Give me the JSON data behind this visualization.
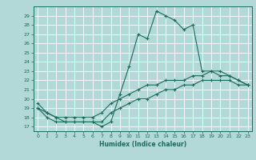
{
  "xlabel": "Humidex (Indice chaleur)",
  "background_color": "#b2d8d8",
  "grid_color": "#ffffff",
  "line_color": "#1a6b5a",
  "xlim": [
    -0.5,
    23.5
  ],
  "ylim": [
    16.5,
    30.0
  ],
  "yticks": [
    17,
    18,
    19,
    20,
    21,
    22,
    23,
    24,
    25,
    26,
    27,
    28,
    29
  ],
  "xticks": [
    0,
    1,
    2,
    3,
    4,
    5,
    6,
    7,
    8,
    9,
    10,
    11,
    12,
    13,
    14,
    15,
    16,
    17,
    18,
    19,
    20,
    21,
    22,
    23
  ],
  "series1": [
    19.5,
    18.5,
    18.0,
    17.5,
    17.5,
    17.5,
    17.5,
    17.0,
    17.5,
    20.5,
    23.5,
    27.0,
    26.5,
    29.5,
    29.0,
    28.5,
    27.5,
    28.0,
    23.0,
    23.0,
    22.5,
    22.5,
    22.0,
    21.5
  ],
  "series2": [
    19.0,
    18.5,
    18.0,
    18.0,
    18.0,
    18.0,
    18.0,
    18.5,
    19.5,
    20.0,
    20.5,
    21.0,
    21.5,
    21.5,
    22.0,
    22.0,
    22.0,
    22.5,
    22.5,
    23.0,
    23.0,
    22.5,
    22.0,
    21.5
  ],
  "series3": [
    19.0,
    18.0,
    17.5,
    17.5,
    17.5,
    17.5,
    17.5,
    17.5,
    18.5,
    19.0,
    19.5,
    20.0,
    20.0,
    20.5,
    21.0,
    21.0,
    21.5,
    21.5,
    22.0,
    22.0,
    22.0,
    22.0,
    21.5,
    21.5
  ]
}
